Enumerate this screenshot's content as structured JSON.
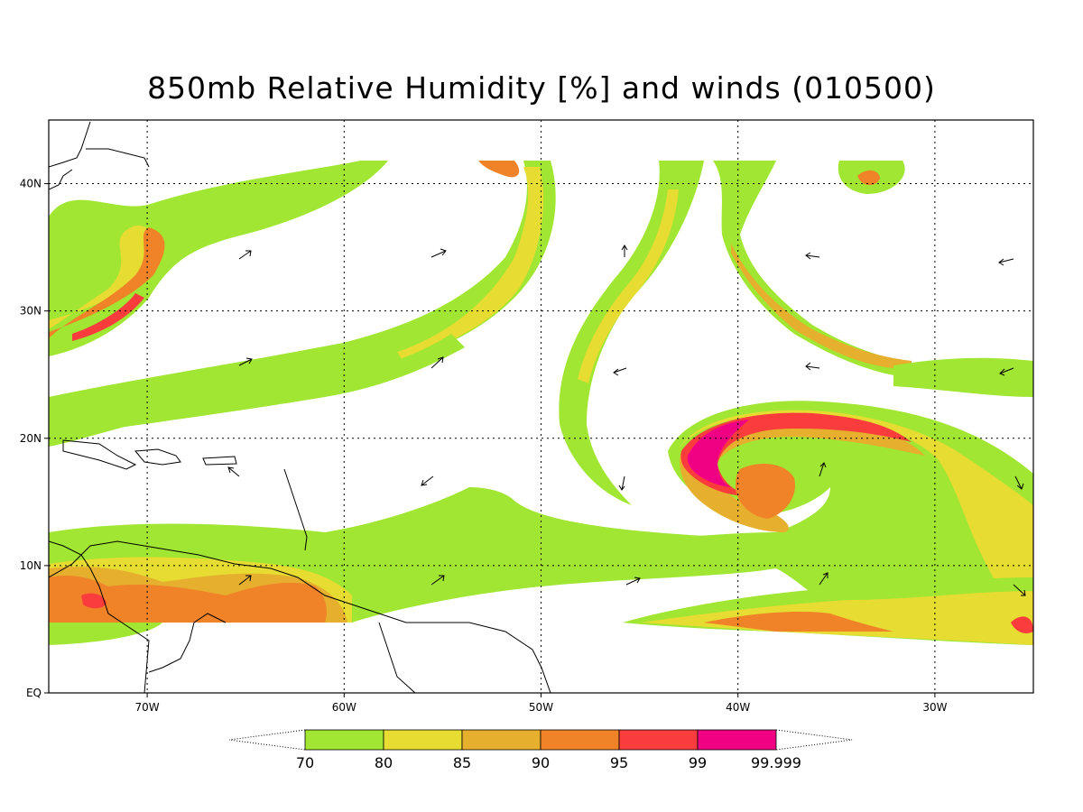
{
  "title": "850mb Relative Humidity [%] and winds (010500)",
  "map": {
    "lon_range": [
      -75,
      -25
    ],
    "lat_range": [
      0,
      45
    ],
    "lon_ticks": [
      {
        "value": -70,
        "label": "70W"
      },
      {
        "value": -60,
        "label": "60W"
      },
      {
        "value": -50,
        "label": "50W"
      },
      {
        "value": -40,
        "label": "40W"
      },
      {
        "value": -30,
        "label": "30W"
      }
    ],
    "lat_ticks": [
      {
        "value": 0,
        "label": "EQ"
      },
      {
        "value": 10,
        "label": "10N"
      },
      {
        "value": 20,
        "label": "20N"
      },
      {
        "value": 30,
        "label": "30N"
      },
      {
        "value": 40,
        "label": "40N"
      }
    ],
    "gridlines": "dotted",
    "shading_colors": {
      "70": "#a0e632",
      "80": "#e6dc32",
      "85": "#e6af2d",
      "90": "#f08228",
      "95": "#fa3c3c",
      "99": "#f00082"
    }
  },
  "colorbar": {
    "levels": [
      "70",
      "80",
      "85",
      "90",
      "95",
      "99",
      "99.999"
    ],
    "colors": [
      "#a0e632",
      "#e6dc32",
      "#e6af2d",
      "#f08228",
      "#fa3c3c",
      "#f00082"
    ]
  }
}
